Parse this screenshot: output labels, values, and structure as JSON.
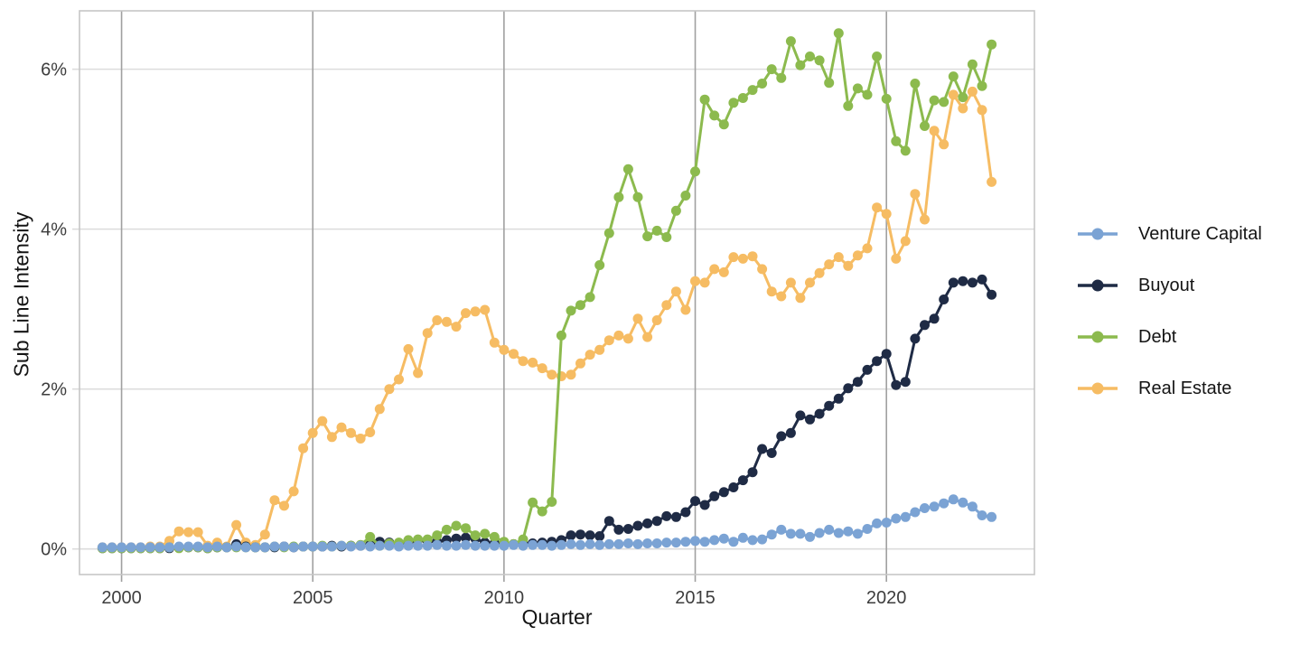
{
  "figure": {
    "background": "#ffffff"
  },
  "chart_data": {
    "type": "line",
    "title": "",
    "xlabel": "Quarter",
    "ylabel": "Sub Line Intensity",
    "x_ticks": [
      2000,
      2005,
      2010,
      2015,
      2020
    ],
    "x_tick_labels": [
      "2000",
      "2005",
      "2010",
      "2015",
      "2020"
    ],
    "y_ticks": [
      0,
      2,
      4,
      6
    ],
    "y_tick_labels": [
      "0%",
      "2%",
      "4%",
      "6%"
    ],
    "xlim": [
      1998.9,
      2023.87
    ],
    "ylim": [
      -0.32,
      6.73
    ],
    "grid": {
      "vertical": true,
      "horizontal": true
    },
    "legend_position": "right",
    "x_start": 1999.5,
    "x_step": 0.25,
    "x_unit": "decimal year, quarterly",
    "colors": {
      "venture_capital": "#7ba3d4",
      "buyout": "#1f2b45",
      "debt": "#8cba4e",
      "real_estate": "#f6bc63",
      "grid_vertical": "#a0a0a0",
      "grid_horizontal": "#dcdcdc",
      "panel_border": "#c6c6c6",
      "tick_text": "#3d3d3d"
    },
    "legend_order": [
      "Venture Capital",
      "Buyout",
      "Debt",
      "Real Estate"
    ],
    "series": [
      {
        "name": "Real Estate",
        "color": "#f6bc63",
        "values": [
          0.02,
          0.02,
          0.02,
          0.02,
          0.02,
          0.03,
          0.03,
          0.1,
          0.22,
          0.21,
          0.21,
          0.04,
          0.08,
          0.03,
          0.3,
          0.08,
          0.05,
          0.18,
          0.61,
          0.54,
          0.72,
          1.26,
          1.45,
          1.6,
          1.4,
          1.52,
          1.45,
          1.38,
          1.46,
          1.75,
          2.0,
          2.12,
          2.5,
          2.2,
          2.7,
          2.86,
          2.84,
          2.78,
          2.95,
          2.97,
          2.99,
          2.58,
          2.49,
          2.44,
          2.35,
          2.33,
          2.26,
          2.18,
          2.16,
          2.18,
          2.32,
          2.43,
          2.49,
          2.61,
          2.67,
          2.63,
          2.88,
          2.65,
          2.86,
          3.05,
          3.22,
          2.99,
          3.35,
          3.33,
          3.5,
          3.46,
          3.65,
          3.63,
          3.66,
          3.5,
          3.22,
          3.16,
          3.33,
          3.14,
          3.33,
          3.45,
          3.56,
          3.65,
          3.54,
          3.67,
          3.76,
          4.27,
          4.19,
          3.63,
          3.85,
          4.44,
          4.12,
          5.23,
          5.06,
          5.68,
          5.51,
          5.72,
          5.49,
          4.59
        ]
      },
      {
        "name": "Buyout",
        "color": "#1f2b45",
        "values": [
          0.01,
          0.01,
          0.01,
          0.01,
          0.01,
          0.01,
          0.01,
          0.01,
          0.02,
          0.02,
          0.02,
          0.01,
          0.02,
          0.02,
          0.06,
          0.03,
          0.02,
          0.02,
          0.02,
          0.03,
          0.02,
          0.03,
          0.03,
          0.03,
          0.04,
          0.03,
          0.04,
          0.04,
          0.05,
          0.09,
          0.08,
          0.06,
          0.08,
          0.11,
          0.1,
          0.09,
          0.11,
          0.13,
          0.14,
          0.13,
          0.08,
          0.07,
          0.06,
          0.06,
          0.07,
          0.07,
          0.08,
          0.09,
          0.11,
          0.17,
          0.18,
          0.17,
          0.16,
          0.35,
          0.24,
          0.25,
          0.29,
          0.32,
          0.35,
          0.41,
          0.4,
          0.46,
          0.6,
          0.55,
          0.66,
          0.71,
          0.77,
          0.86,
          0.96,
          1.25,
          1.2,
          1.41,
          1.45,
          1.67,
          1.62,
          1.69,
          1.79,
          1.88,
          2.01,
          2.09,
          2.24,
          2.35,
          2.44,
          2.05,
          2.09,
          2.63,
          2.8,
          2.88,
          3.12,
          3.33,
          3.35,
          3.33,
          3.37,
          3.18
        ]
      },
      {
        "name": "Debt",
        "color": "#8cba4e",
        "values": [
          0.01,
          0.01,
          0.01,
          0.01,
          0.01,
          0.01,
          0.01,
          0.02,
          0.01,
          0.02,
          0.02,
          0.01,
          0.02,
          0.02,
          0.02,
          0.02,
          0.02,
          0.02,
          0.03,
          0.02,
          0.03,
          0.03,
          0.03,
          0.04,
          0.03,
          0.04,
          0.04,
          0.05,
          0.15,
          0.04,
          0.07,
          0.08,
          0.11,
          0.12,
          0.12,
          0.17,
          0.24,
          0.29,
          0.26,
          0.17,
          0.19,
          0.15,
          0.09,
          0.06,
          0.12,
          0.58,
          0.47,
          0.59,
          2.67,
          2.98,
          3.05,
          3.15,
          3.55,
          3.95,
          4.4,
          4.75,
          4.4,
          3.91,
          3.98,
          3.9,
          4.23,
          4.42,
          4.72,
          5.62,
          5.42,
          5.31,
          5.58,
          5.64,
          5.74,
          5.82,
          6.0,
          5.89,
          6.35,
          6.05,
          6.16,
          6.11,
          5.83,
          6.45,
          5.54,
          5.76,
          5.68,
          6.16,
          5.63,
          5.1,
          4.98,
          5.82,
          5.29,
          5.61,
          5.59,
          5.91,
          5.65,
          6.06,
          5.79,
          6.31
        ]
      },
      {
        "name": "Venture Capital",
        "color": "#7ba3d4",
        "values": [
          0.02,
          0.02,
          0.02,
          0.02,
          0.02,
          0.02,
          0.02,
          0.02,
          0.03,
          0.03,
          0.03,
          0.02,
          0.03,
          0.02,
          0.03,
          0.02,
          0.02,
          0.02,
          0.03,
          0.03,
          0.02,
          0.03,
          0.03,
          0.03,
          0.03,
          0.04,
          0.03,
          0.04,
          0.03,
          0.04,
          0.04,
          0.03,
          0.04,
          0.04,
          0.04,
          0.05,
          0.04,
          0.04,
          0.05,
          0.04,
          0.04,
          0.04,
          0.04,
          0.05,
          0.04,
          0.05,
          0.05,
          0.04,
          0.05,
          0.06,
          0.05,
          0.06,
          0.05,
          0.06,
          0.06,
          0.07,
          0.06,
          0.07,
          0.07,
          0.08,
          0.08,
          0.09,
          0.1,
          0.09,
          0.11,
          0.13,
          0.09,
          0.14,
          0.11,
          0.12,
          0.18,
          0.24,
          0.19,
          0.19,
          0.15,
          0.2,
          0.24,
          0.2,
          0.22,
          0.19,
          0.25,
          0.32,
          0.33,
          0.38,
          0.4,
          0.46,
          0.51,
          0.53,
          0.57,
          0.62,
          0.58,
          0.53,
          0.42,
          0.4
        ]
      }
    ]
  }
}
